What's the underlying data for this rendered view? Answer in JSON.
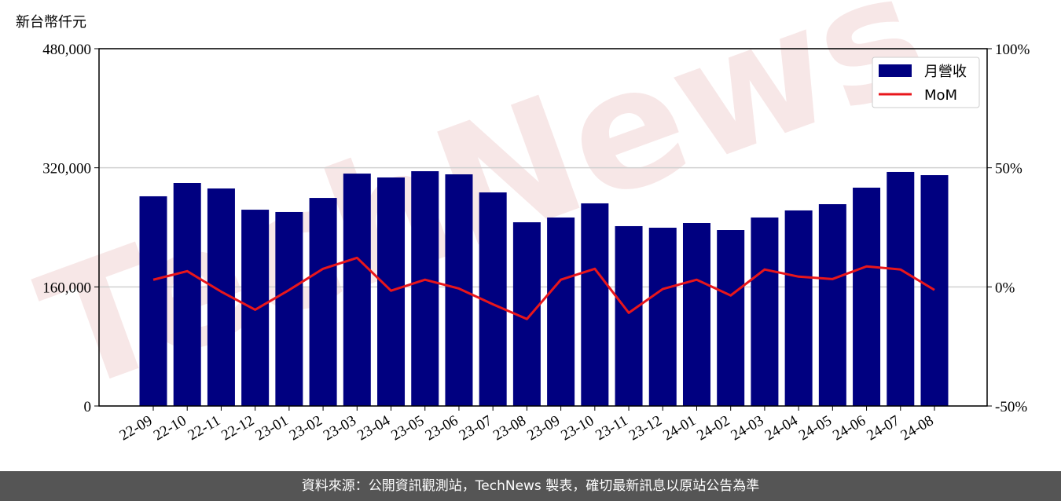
{
  "chart_data": {
    "type": "bar",
    "y_label": "新台幣仟元",
    "watermark": "TechNews",
    "source": "資料來源：公開資訊觀測站，TechNews 製表，確切最新訊息以原站公告為準",
    "categories": [
      "22-09",
      "22-10",
      "22-11",
      "22-12",
      "23-01",
      "23-02",
      "23-03",
      "23-04",
      "23-05",
      "23-06",
      "23-07",
      "23-08",
      "23-09",
      "23-10",
      "23-11",
      "23-12",
      "24-01",
      "24-02",
      "24-03",
      "24-04",
      "24-05",
      "24-06",
      "24-07",
      "24-08"
    ],
    "series": [
      {
        "name": "月營收",
        "type": "bar",
        "color": "#000080",
        "values": [
          281700,
          299600,
          292200,
          263700,
          260600,
          279500,
          312200,
          307000,
          315400,
          311200,
          286900,
          246800,
          253200,
          272200,
          241600,
          239500,
          245800,
          236300,
          253200,
          262700,
          271100,
          293300,
          314400,
          310100
        ]
      },
      {
        "name": "MoM",
        "type": "line",
        "axis": "y2",
        "color": "#e8161b",
        "values": [
          3.0,
          6.6,
          -2.0,
          -9.6,
          -1.3,
          7.6,
          12.2,
          -1.6,
          3.0,
          -0.7,
          -7.3,
          -13.5,
          3.0,
          7.6,
          -10.9,
          -0.9,
          3.0,
          -3.6,
          7.3,
          4.3,
          3.3,
          8.6,
          7.3,
          -1.3
        ]
      }
    ],
    "ylim": [
      0,
      480000
    ],
    "yticks": [
      0,
      {
        "value": 160000,
        "label": "160,000"
      },
      {
        "value": 320000,
        "label": "320,000"
      },
      {
        "value": 480000,
        "label": "480,000"
      }
    ],
    "y2lim": [
      -50,
      100
    ],
    "y2ticks": [
      {
        "value": -50,
        "label": "-50%"
      },
      {
        "value": 0,
        "label": "0%"
      },
      {
        "value": 50,
        "label": "50%"
      },
      {
        "value": 100,
        "label": "100%"
      }
    ],
    "grid": true,
    "legend": "upper right"
  }
}
